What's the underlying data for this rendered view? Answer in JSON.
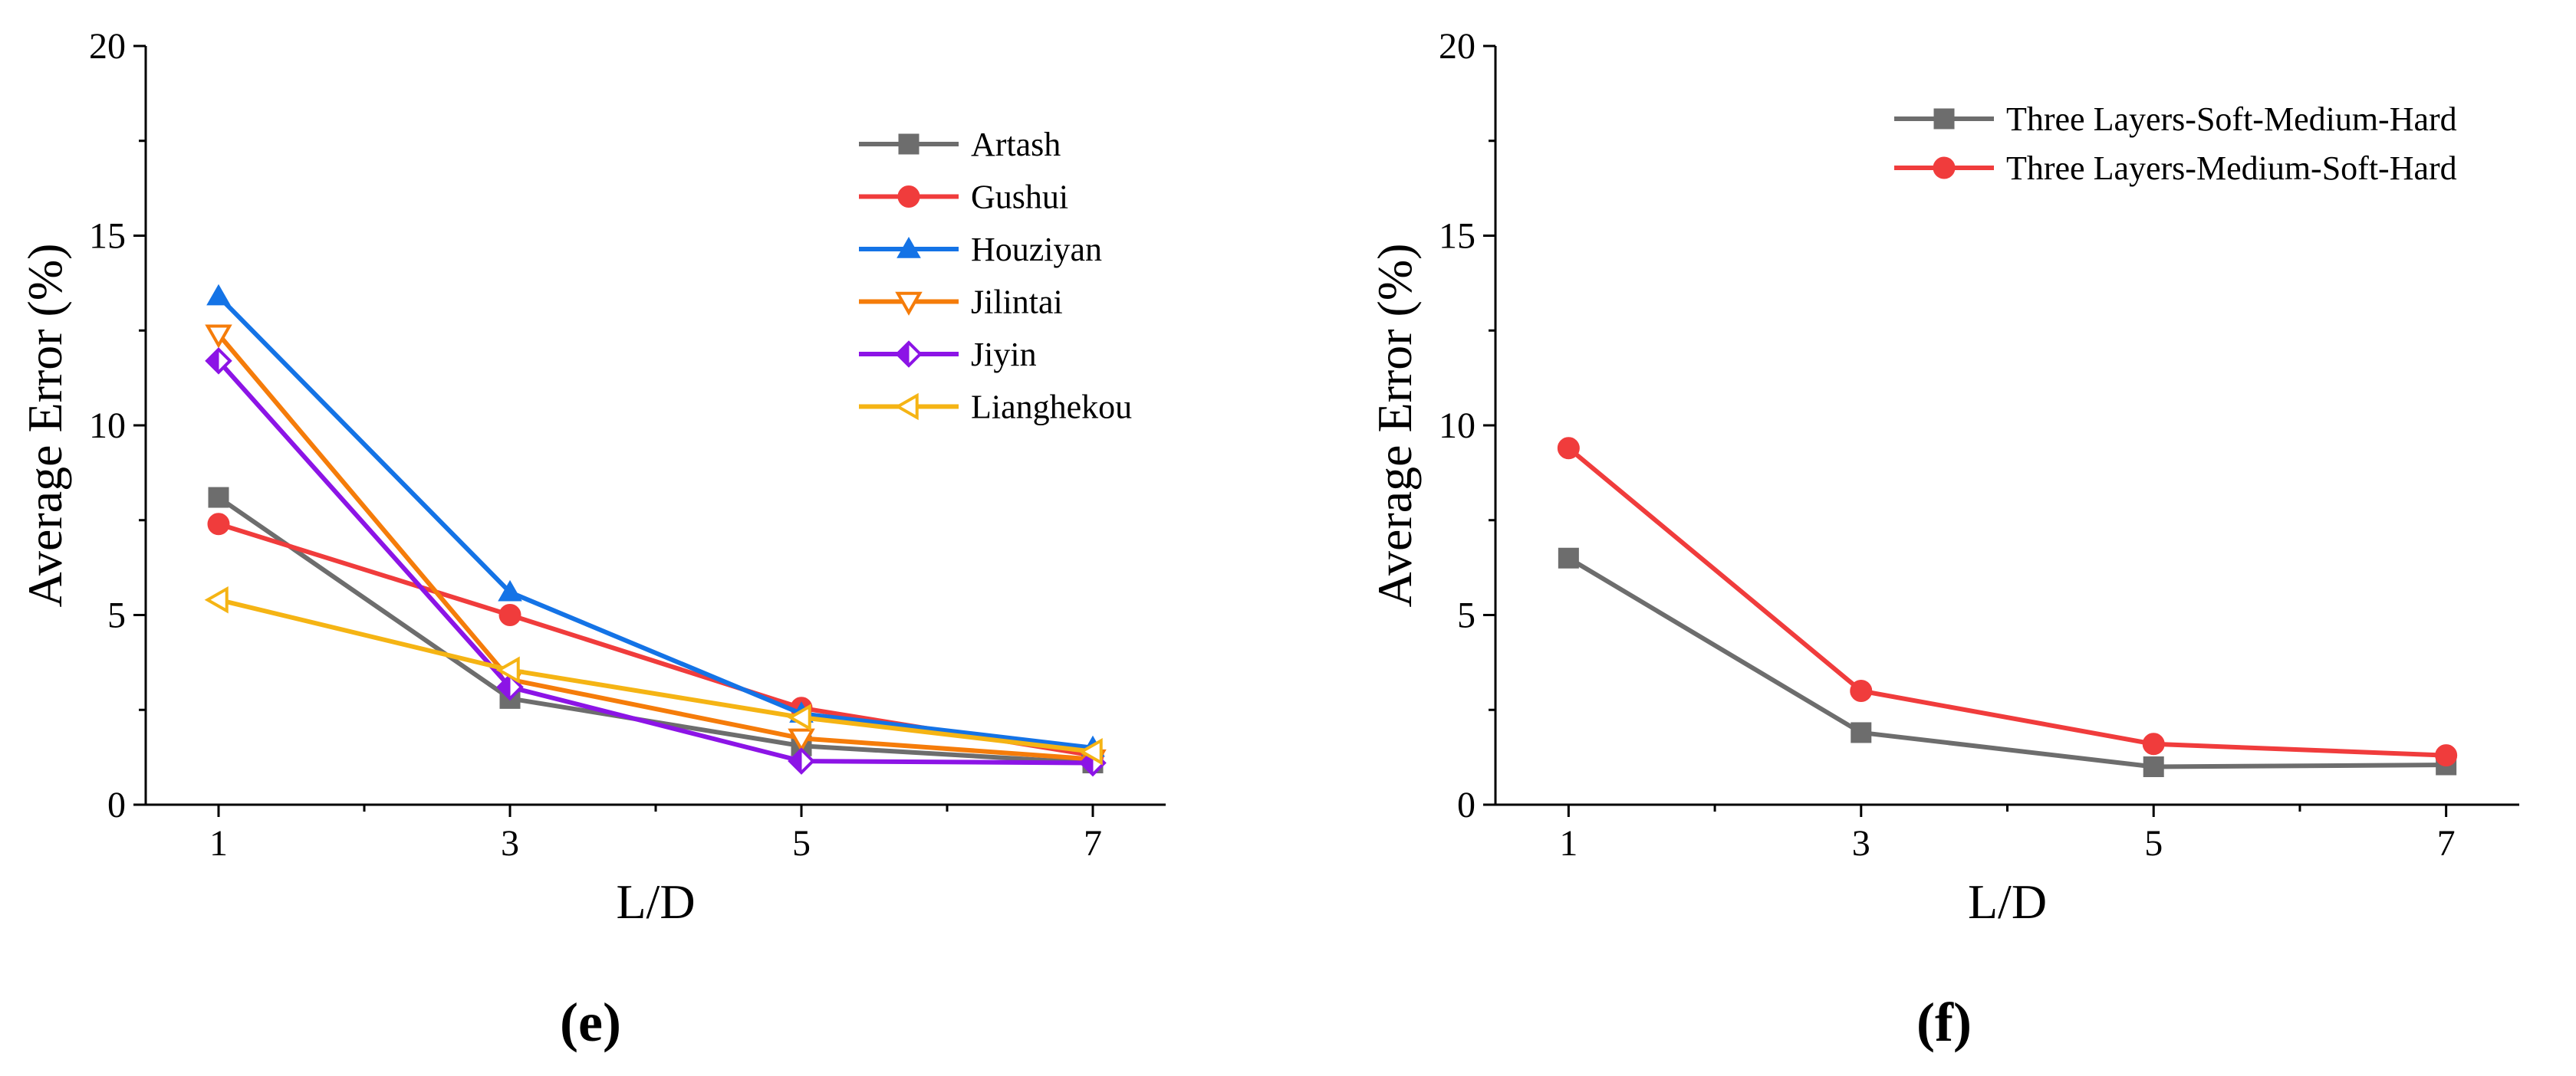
{
  "chart_data": [
    {
      "type": "line",
      "panel_label": "(e)",
      "title": "",
      "xlabel": "L/D",
      "ylabel": "Average Error (%)",
      "x": [
        1,
        3,
        5,
        7
      ],
      "xticks": [
        "1",
        "3",
        "5",
        "7"
      ],
      "xlim": [
        0.5,
        7.5
      ],
      "ylim": [
        0,
        20
      ],
      "yticks": [
        "0",
        "5",
        "10",
        "15",
        "20"
      ],
      "legend_position": "top-right",
      "series": [
        {
          "name": "Artash",
          "values": [
            8.1,
            2.8,
            1.55,
            1.1
          ],
          "color": "#6d6d6d",
          "marker": "square"
        },
        {
          "name": "Gushui",
          "values": [
            7.4,
            5.0,
            2.55,
            1.3
          ],
          "color": "#f03c3c",
          "marker": "circle"
        },
        {
          "name": "Houziyan",
          "values": [
            13.4,
            5.6,
            2.4,
            1.5
          ],
          "color": "#1473e6",
          "marker": "triangle-up"
        },
        {
          "name": "Jilintai",
          "values": [
            12.4,
            3.3,
            1.75,
            1.2
          ],
          "color": "#f57c0a",
          "marker": "triangle-down-open"
        },
        {
          "name": "Jiyin",
          "values": [
            11.7,
            3.1,
            1.15,
            1.1
          ],
          "color": "#8c14e6",
          "marker": "diamond-half"
        },
        {
          "name": "Lianghekou",
          "values": [
            5.4,
            3.55,
            2.3,
            1.4
          ],
          "color": "#f5b414",
          "marker": "triangle-left-open"
        }
      ]
    },
    {
      "type": "line",
      "panel_label": "(f)",
      "title": "",
      "xlabel": "L/D",
      "ylabel": "Average Error (%)",
      "x": [
        1,
        3,
        5,
        7
      ],
      "xticks": [
        "1",
        "3",
        "5",
        "7"
      ],
      "xlim": [
        0.5,
        7.5
      ],
      "ylim": [
        0,
        20
      ],
      "yticks": [
        "0",
        "5",
        "10",
        "15",
        "20"
      ],
      "legend_position": "top-right",
      "series": [
        {
          "name": "Three Layers-Soft-Medium-Hard",
          "values": [
            6.5,
            1.9,
            1.0,
            1.05
          ],
          "color": "#6d6d6d",
          "marker": "square"
        },
        {
          "name": "Three Layers-Medium-Soft-Hard",
          "values": [
            9.4,
            3.0,
            1.6,
            1.3
          ],
          "color": "#f03c3c",
          "marker": "circle"
        }
      ]
    }
  ]
}
